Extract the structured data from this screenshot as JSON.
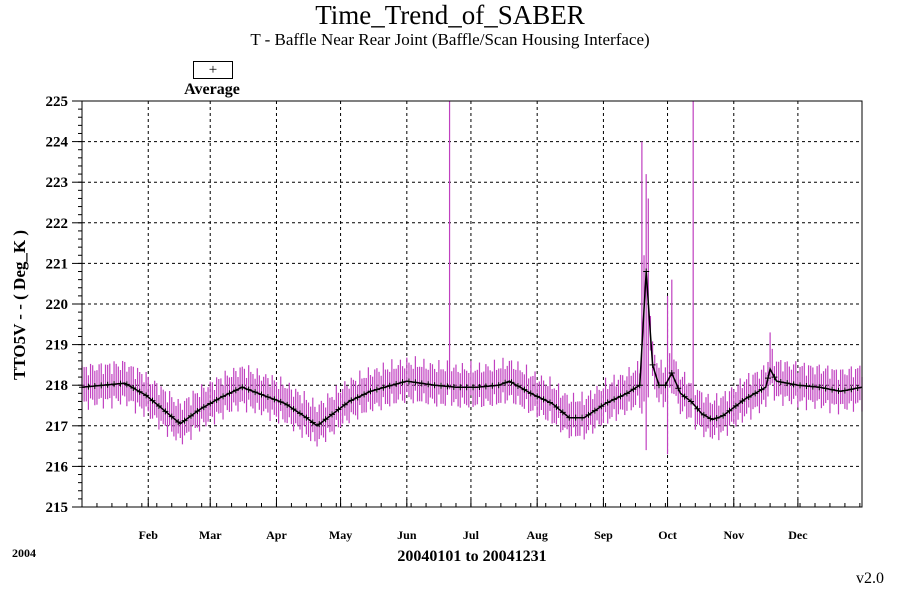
{
  "header": {
    "title": "Time_Trend_of_SABER",
    "subtitle": "T - Baffle Near Rear Joint (Baffle/Scan Housing Interface)"
  },
  "legend": {
    "symbol": "+",
    "label": "Average"
  },
  "footer": {
    "year": "2004",
    "range": "20040101 to 20041231",
    "version": "v2.0"
  },
  "chart_data": {
    "type": "line",
    "title": "Time_Trend_of_SABER",
    "subtitle": "T - Baffle Near Rear Joint (Baffle/Scan Housing Interface)",
    "xlabel": "20040101 to 20041231",
    "ylabel": "TTO5V  - - ( Deg_K )",
    "ylim": [
      215,
      225
    ],
    "xlim": [
      0,
      365
    ],
    "yticks": [
      215,
      216,
      217,
      218,
      219,
      220,
      221,
      222,
      223,
      224,
      225
    ],
    "xtick_labels": [
      "Feb",
      "Mar",
      "Apr",
      "May",
      "Jun",
      "Jul",
      "Aug",
      "Sep",
      "Oct",
      "Nov",
      "Dec"
    ],
    "xtick_days": [
      31,
      60,
      91,
      121,
      152,
      182,
      213,
      244,
      274,
      305,
      335
    ],
    "grid": true,
    "legend_position": "top-left",
    "colors": {
      "range": "#c040c0",
      "average": "#000000",
      "grid": "#000000"
    },
    "series": [
      {
        "name": "Average",
        "marker": "+",
        "anchor_days": [
          0,
          10,
          20,
          30,
          38,
          46,
          55,
          65,
          75,
          85,
          95,
          105,
          110,
          115,
          125,
          135,
          145,
          152,
          165,
          175,
          185,
          195,
          200,
          210,
          220,
          228,
          235,
          245,
          255,
          258,
          261,
          264,
          267,
          270,
          273,
          276,
          280,
          285,
          290,
          295,
          300,
          310,
          320,
          322,
          325,
          335,
          345,
          355,
          365
        ],
        "anchor_values": [
          217.95,
          218.0,
          218.05,
          217.75,
          217.4,
          217.05,
          217.4,
          217.7,
          217.95,
          217.75,
          217.55,
          217.2,
          217.0,
          217.2,
          217.6,
          217.85,
          218.0,
          218.1,
          218.0,
          217.95,
          217.95,
          218.0,
          218.1,
          217.8,
          217.55,
          217.2,
          217.2,
          217.55,
          217.8,
          217.9,
          218.0,
          220.8,
          218.5,
          218.0,
          218.0,
          218.3,
          217.8,
          217.6,
          217.3,
          217.15,
          217.25,
          217.65,
          217.95,
          218.4,
          218.1,
          218.0,
          217.95,
          217.85,
          217.95
        ],
        "lower_offset": 0.4,
        "upper_offset": 0.45,
        "outliers": [
          {
            "day": 172,
            "min": 217.9,
            "max": 225.0
          },
          {
            "day": 262,
            "min": 217.3,
            "max": 224.0
          },
          {
            "day": 263,
            "min": 217.6,
            "max": 221.2
          },
          {
            "day": 264,
            "min": 216.4,
            "max": 223.2
          },
          {
            "day": 265,
            "min": 217.7,
            "max": 222.6
          },
          {
            "day": 274,
            "min": 216.3,
            "max": 220.2
          },
          {
            "day": 276,
            "min": 217.8,
            "max": 220.6
          },
          {
            "day": 286,
            "min": 217.5,
            "max": 225.0
          },
          {
            "day": 322,
            "min": 218.0,
            "max": 219.3
          }
        ]
      }
    ]
  }
}
